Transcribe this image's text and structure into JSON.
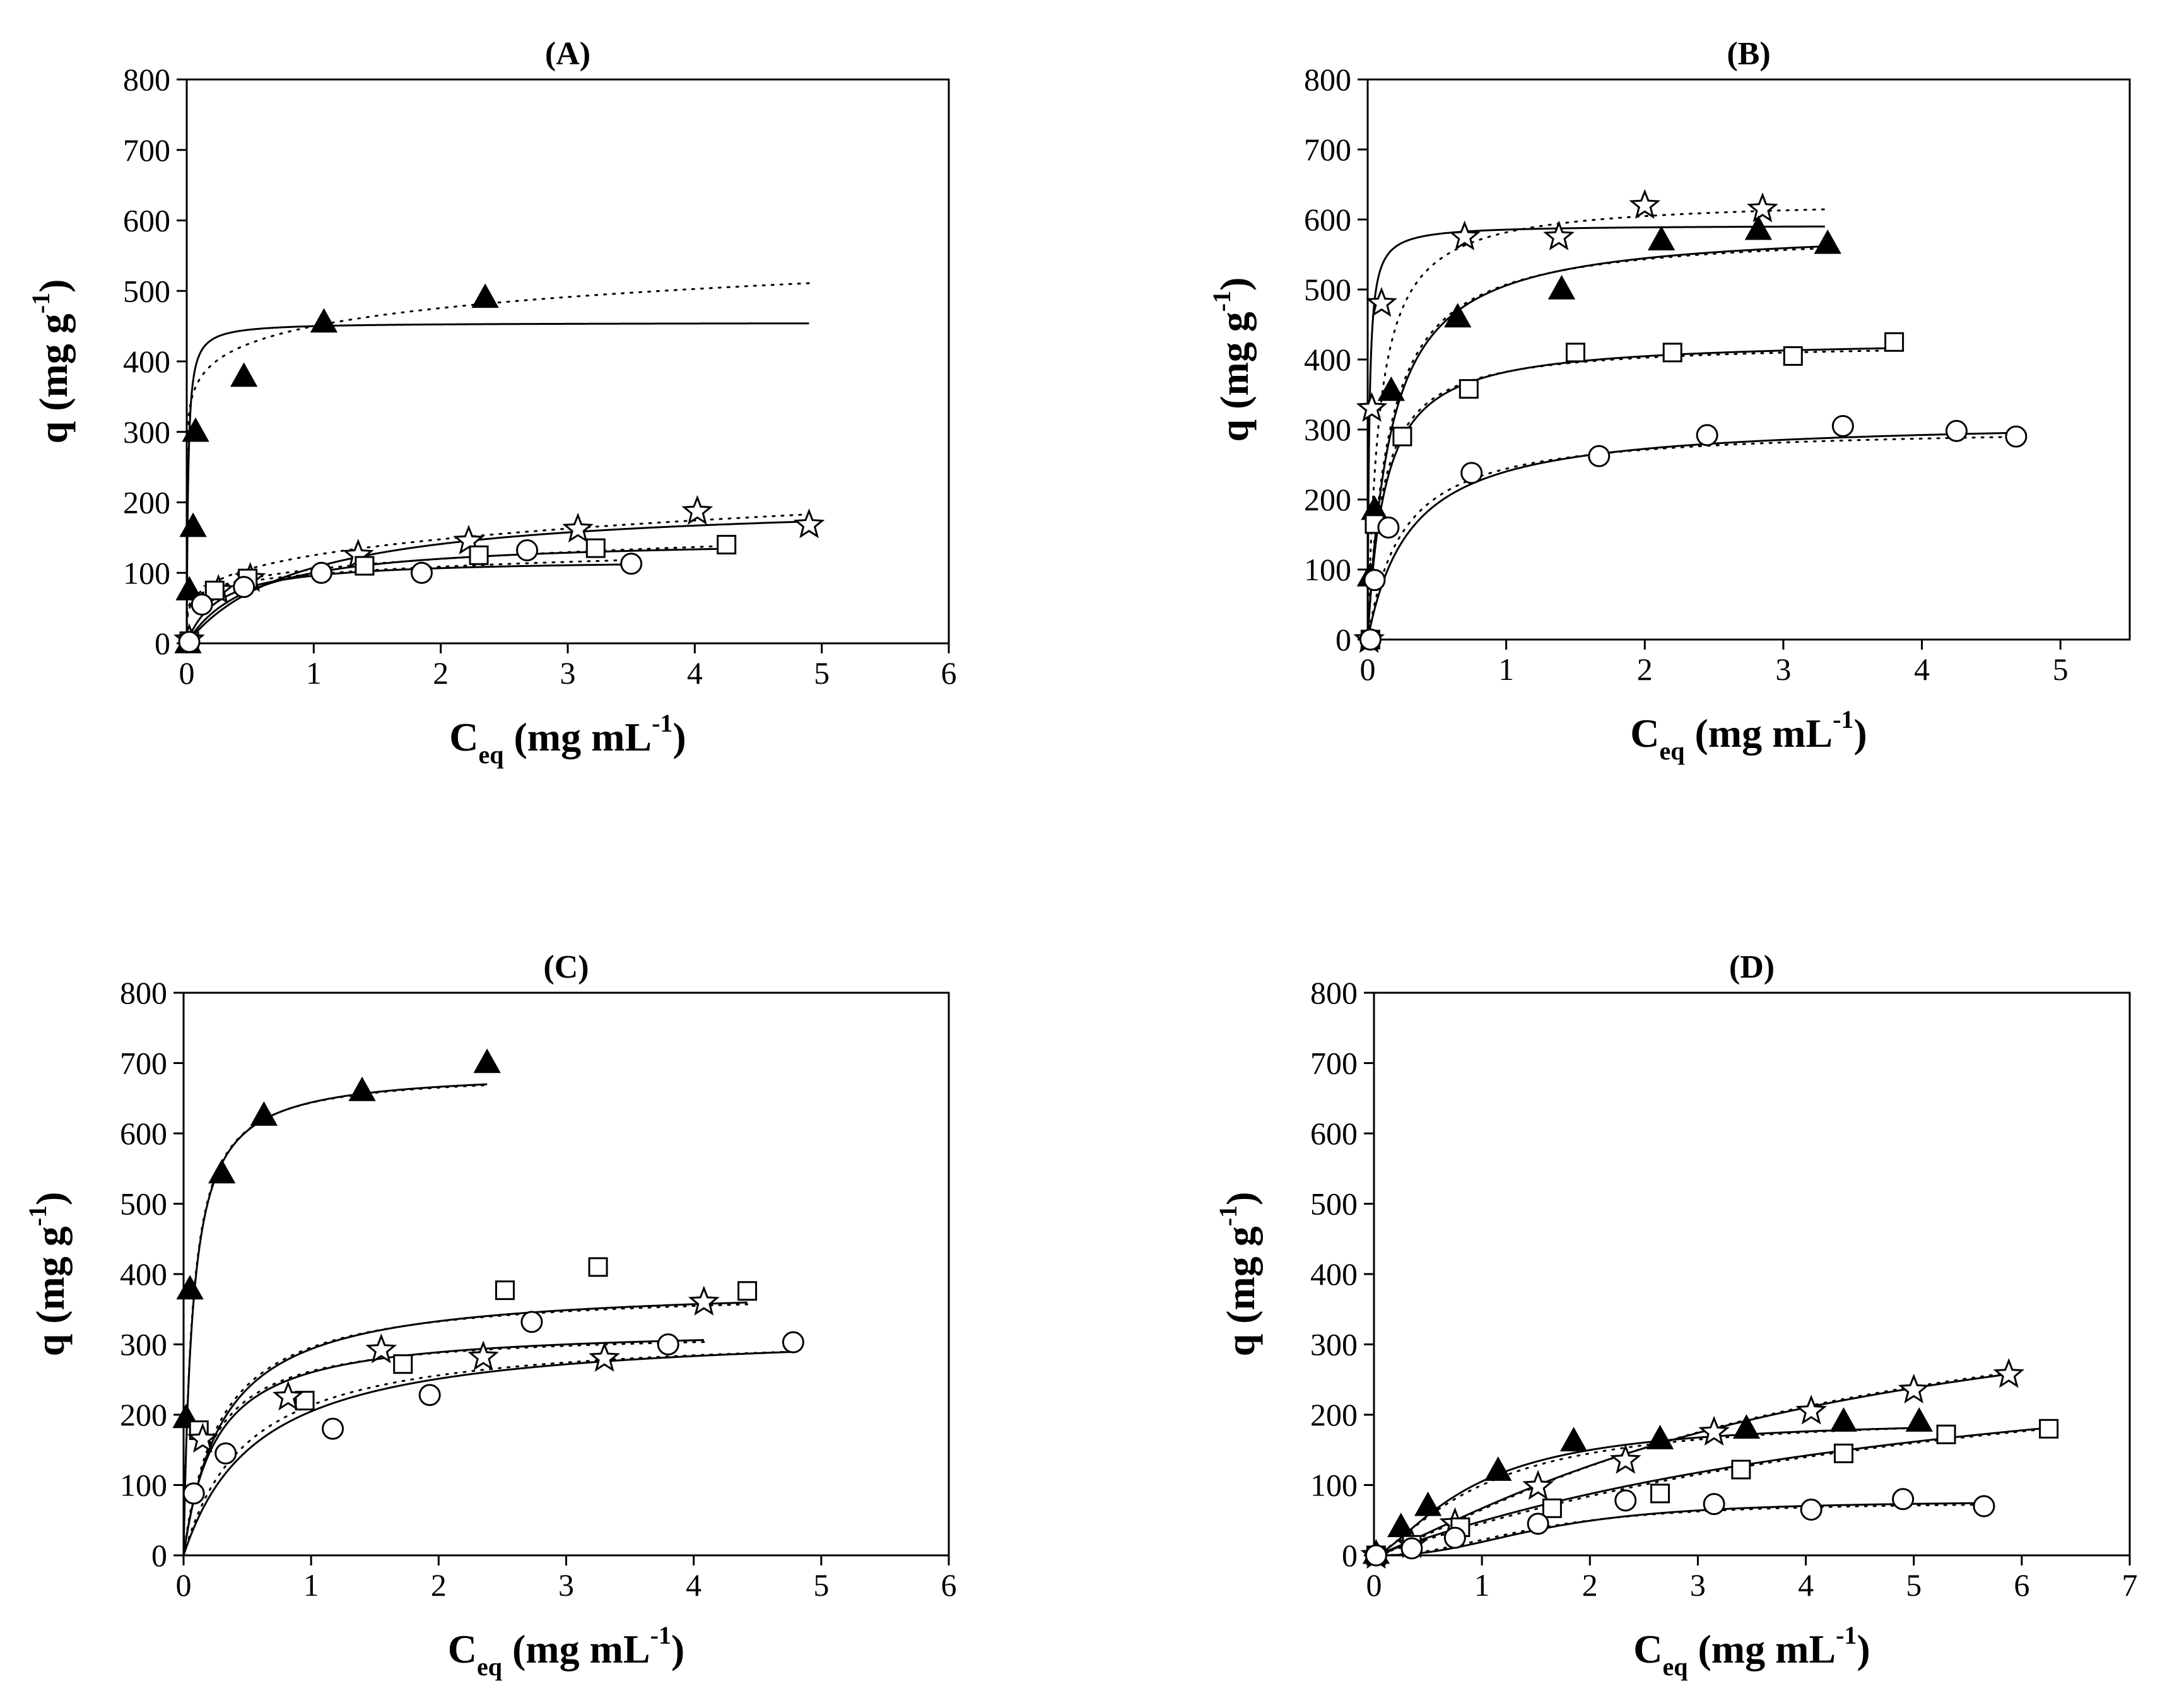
{
  "chart_data": [
    {
      "type": "scatter",
      "title": "(A)",
      "xlabel": "Ceq (mg mL-1)",
      "ylabel": "q (mg g-1)",
      "xlim": [
        0,
        6
      ],
      "ylim": [
        0,
        800
      ],
      "xticks": [
        0,
        1,
        2,
        3,
        4,
        5,
        6
      ],
      "yticks": [
        0,
        100,
        200,
        300,
        400,
        500,
        600,
        700,
        800
      ],
      "series": [
        {
          "name": "filled-triangle",
          "marker": "triangle-filled",
          "x": [
            0.01,
            0.02,
            0.05,
            0.07,
            0.45,
            1.08,
            2.35
          ],
          "y": [
            0,
            75,
            165,
            300,
            378,
            455,
            490
          ]
        },
        {
          "name": "open-star",
          "marker": "star-open",
          "x": [
            0.02,
            0.25,
            0.5,
            1.35,
            2.22,
            3.08,
            4.02,
            4.9
          ],
          "y": [
            5,
            75,
            92,
            125,
            145,
            162,
            187,
            168
          ]
        },
        {
          "name": "open-square",
          "marker": "square-open",
          "x": [
            0.02,
            0.22,
            0.48,
            1.4,
            2.3,
            3.22,
            4.25
          ],
          "y": [
            3,
            75,
            92,
            110,
            125,
            135,
            140
          ]
        },
        {
          "name": "open-circle",
          "marker": "circle-open",
          "x": [
            0.02,
            0.12,
            0.45,
            1.06,
            1.85,
            2.68,
            3.5
          ],
          "y": [
            2,
            55,
            80,
            100,
            100,
            132,
            113
          ]
        }
      ],
      "fits": [
        {
          "series": "filled-triangle",
          "style": "solid",
          "model": "langmuir",
          "qmax": 455,
          "k": 90,
          "xmax": 4.9
        },
        {
          "series": "filled-triangle",
          "style": "dotted",
          "model": "freundlich",
          "kf": 450,
          "n": 0.08,
          "xmax": 4.9
        },
        {
          "series": "open-star",
          "style": "solid",
          "model": "langmuir",
          "qmax": 205,
          "k": 1.1,
          "xmax": 4.9
        },
        {
          "series": "open-star",
          "style": "dotted",
          "model": "freundlich",
          "kf": 125,
          "n": 0.24,
          "xmax": 4.9
        },
        {
          "series": "open-square",
          "style": "solid",
          "model": "langmuir",
          "qmax": 150,
          "k": 2.0,
          "xmax": 4.3
        },
        {
          "series": "open-square",
          "style": "dotted",
          "model": "freundlich",
          "kf": 105,
          "n": 0.19,
          "xmax": 4.3
        },
        {
          "series": "open-circle",
          "style": "solid",
          "model": "langmuir",
          "qmax": 120,
          "k": 4.0,
          "xmax": 3.5
        },
        {
          "series": "open-circle",
          "style": "dotted",
          "model": "freundlich",
          "kf": 98,
          "n": 0.15,
          "xmax": 3.5
        }
      ]
    },
    {
      "type": "scatter",
      "title": "(B)",
      "xlabel": "Ceq (mg mL-1)",
      "ylabel": "q (mg g-1)",
      "xlim": [
        0,
        5.5
      ],
      "ylim": [
        0,
        800
      ],
      "xticks": [
        0,
        1,
        2,
        3,
        4,
        5
      ],
      "yticks": [
        0,
        100,
        200,
        300,
        400,
        500,
        600,
        700,
        800
      ],
      "series": [
        {
          "name": "open-star",
          "marker": "star-open",
          "x": [
            0.01,
            0.03,
            0.1,
            0.7,
            1.38,
            2.0,
            2.85
          ],
          "y": [
            0,
            330,
            480,
            575,
            575,
            620,
            615
          ]
        },
        {
          "name": "filled-triangle",
          "marker": "triangle-filled",
          "x": [
            0.02,
            0.05,
            0.17,
            0.65,
            1.4,
            2.12,
            2.82,
            3.32
          ],
          "y": [
            90,
            185,
            355,
            460,
            500,
            570,
            585,
            565
          ]
        },
        {
          "name": "open-square",
          "marker": "square-open",
          "x": [
            0.02,
            0.05,
            0.25,
            0.73,
            1.5,
            2.2,
            3.07,
            3.8
          ],
          "y": [
            0,
            165,
            290,
            358,
            410,
            410,
            405,
            425
          ]
        },
        {
          "name": "open-circle",
          "marker": "circle-open",
          "x": [
            0.02,
            0.05,
            0.15,
            0.75,
            1.67,
            2.45,
            3.43,
            4.25,
            4.68
          ],
          "y": [
            0,
            85,
            160,
            238,
            262,
            292,
            305,
            298,
            290
          ]
        }
      ],
      "fits": [
        {
          "series": "open-star",
          "style": "solid",
          "model": "langmuir",
          "qmax": 592,
          "k": 90,
          "xmax": 3.3
        },
        {
          "series": "open-star",
          "style": "dotted",
          "model": "langmuir",
          "qmax": 630,
          "k": 12,
          "xmax": 3.3
        },
        {
          "series": "filled-triangle",
          "style": "solid",
          "model": "langmuir",
          "qmax": 590,
          "k": 6,
          "xmax": 3.32
        },
        {
          "series": "filled-triangle",
          "style": "dotted",
          "model": "langmuir",
          "qmax": 585,
          "k": 6.5,
          "xmax": 3.32
        },
        {
          "series": "open-square",
          "style": "solid",
          "model": "langmuir",
          "qmax": 430,
          "k": 8,
          "xmax": 3.8
        },
        {
          "series": "open-square",
          "style": "dotted",
          "model": "langmuir",
          "qmax": 425,
          "k": 9,
          "xmax": 3.8
        },
        {
          "series": "open-circle",
          "style": "solid",
          "model": "langmuir",
          "qmax": 315,
          "k": 3.2,
          "xmax": 4.68
        },
        {
          "series": "open-circle",
          "style": "dotted",
          "model": "langmuir",
          "qmax": 305,
          "k": 4.0,
          "xmax": 4.68
        }
      ]
    },
    {
      "type": "scatter",
      "title": "(C)",
      "xlabel": "Ceq (mg mL-1)",
      "ylabel": "q (mg g-1)",
      "xlim": [
        0,
        6
      ],
      "ylim": [
        0,
        800
      ],
      "xticks": [
        0,
        1,
        2,
        3,
        4,
        5,
        6
      ],
      "yticks": [
        0,
        100,
        200,
        300,
        400,
        500,
        600,
        700,
        800
      ],
      "series": [
        {
          "name": "filled-triangle",
          "marker": "triangle-filled",
          "x": [
            0.02,
            0.05,
            0.3,
            0.63,
            1.4,
            2.38
          ],
          "y": [
            195,
            378,
            543,
            625,
            660,
            700
          ]
        },
        {
          "name": "open-square",
          "marker": "square-open",
          "x": [
            0.12,
            0.95,
            1.72,
            2.52,
            3.25,
            4.42
          ],
          "y": [
            178,
            220,
            272,
            377,
            410,
            376
          ]
        },
        {
          "name": "open-star",
          "marker": "star-open",
          "x": [
            0.15,
            0.82,
            1.55,
            2.35,
            3.3,
            4.08
          ],
          "y": [
            165,
            225,
            292,
            282,
            280,
            360
          ]
        },
        {
          "name": "open-circle",
          "marker": "circle-open",
          "x": [
            0.08,
            0.33,
            1.17,
            1.93,
            2.73,
            3.8,
            4.78
          ],
          "y": [
            88,
            145,
            180,
            228,
            332,
            300,
            303
          ]
        }
      ],
      "fits": [
        {
          "series": "filled-triangle",
          "style": "solid",
          "model": "langmuir",
          "qmax": 690,
          "k": 14,
          "xmax": 2.38
        },
        {
          "series": "filled-triangle",
          "style": "dotted",
          "model": "langmuir",
          "qmax": 688,
          "k": 14.5,
          "xmax": 2.38
        },
        {
          "series": "open-square",
          "style": "solid",
          "model": "langmuir",
          "qmax": 385,
          "k": 3.2,
          "xmax": 4.42
        },
        {
          "series": "open-square",
          "style": "dotted",
          "model": "langmuir",
          "qmax": 380,
          "k": 3.5,
          "xmax": 4.42
        },
        {
          "series": "open-star",
          "style": "solid",
          "model": "langmuir",
          "qmax": 325,
          "k": 4.0,
          "xmax": 4.08
        },
        {
          "series": "open-star",
          "style": "dotted",
          "model": "langmuir",
          "qmax": 320,
          "k": 4.5,
          "xmax": 4.08
        },
        {
          "series": "open-circle",
          "style": "solid",
          "model": "langmuir",
          "qmax": 325,
          "k": 1.7,
          "xmax": 4.78
        },
        {
          "series": "open-circle",
          "style": "dotted",
          "model": "langmuir",
          "qmax": 320,
          "k": 2.0,
          "xmax": 4.78
        }
      ]
    },
    {
      "type": "scatter",
      "title": "(D)",
      "xlabel": "Ceq (mg mL-1)",
      "ylabel": "q (mg g-1)",
      "xlim": [
        0,
        7
      ],
      "ylim": [
        0,
        800
      ],
      "xticks": [
        0,
        1,
        2,
        3,
        4,
        5,
        6,
        7
      ],
      "yticks": [
        0,
        100,
        200,
        300,
        400,
        500,
        600,
        700,
        800
      ],
      "series": [
        {
          "name": "filled-triangle",
          "marker": "triangle-filled",
          "x": [
            0.02,
            0.25,
            0.5,
            1.15,
            1.85,
            2.65,
            3.45,
            4.35,
            5.05
          ],
          "y": [
            2,
            40,
            70,
            120,
            162,
            165,
            180,
            190,
            190
          ]
        },
        {
          "name": "open-star",
          "marker": "star-open",
          "x": [
            0.02,
            0.35,
            0.75,
            1.52,
            2.33,
            3.15,
            4.05,
            5.0,
            5.88
          ],
          "y": [
            0,
            15,
            45,
            98,
            135,
            175,
            205,
            235,
            257
          ]
        },
        {
          "name": "open-square",
          "marker": "square-open",
          "x": [
            0.02,
            0.35,
            0.8,
            1.65,
            2.65,
            3.4,
            4.35,
            5.3,
            6.25
          ],
          "y": [
            0,
            15,
            40,
            67,
            88,
            122,
            145,
            172,
            180
          ]
        },
        {
          "name": "open-circle",
          "marker": "circle-open",
          "x": [
            0.02,
            0.35,
            0.75,
            1.52,
            2.33,
            3.15,
            4.05,
            4.9,
            5.65
          ],
          "y": [
            0,
            10,
            25,
            45,
            78,
            73,
            65,
            80,
            70
          ]
        }
      ],
      "fits": [
        {
          "series": "filled-triangle",
          "style": "solid",
          "model": "sigmoid",
          "qmax": 195,
          "c50": 0.9,
          "h": 1.5,
          "xmax": 5.05
        },
        {
          "series": "filled-triangle",
          "style": "dotted",
          "model": "sigmoid",
          "qmax": 200,
          "c50": 1.0,
          "h": 1.4,
          "xmax": 5.05
        },
        {
          "series": "open-star",
          "style": "solid",
          "model": "sigmoid",
          "qmax": 420,
          "c50": 4.0,
          "h": 1.2,
          "xmax": 5.88
        },
        {
          "series": "open-star",
          "style": "dotted",
          "model": "sigmoid",
          "qmax": 410,
          "c50": 3.8,
          "h": 1.25,
          "xmax": 5.88
        },
        {
          "series": "open-square",
          "style": "solid",
          "model": "sigmoid",
          "qmax": 340,
          "c50": 5.5,
          "h": 1.05,
          "xmax": 6.25
        },
        {
          "series": "open-square",
          "style": "dotted",
          "model": "sigmoid",
          "qmax": 330,
          "c50": 5.3,
          "h": 1.1,
          "xmax": 6.25
        },
        {
          "series": "open-circle",
          "style": "solid",
          "model": "sigmoid",
          "qmax": 78,
          "c50": 1.6,
          "h": 2.4,
          "xmax": 5.65
        },
        {
          "series": "open-circle",
          "style": "dotted",
          "model": "sigmoid",
          "qmax": 76,
          "c50": 1.5,
          "h": 2.2,
          "xmax": 5.65
        }
      ]
    }
  ]
}
